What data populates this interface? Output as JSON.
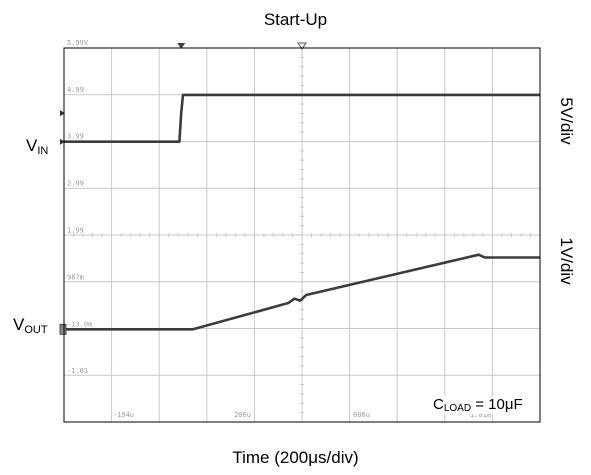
{
  "title": "Start-Up",
  "xlabel": "Time (200μs/div)",
  "side_labels": [
    "5V/div",
    "1V/div"
  ],
  "channel_labels": {
    "vin": {
      "main": "V",
      "sub": "IN"
    },
    "vout": {
      "main": "V",
      "sub": "OUT"
    }
  },
  "annotation": {
    "main": "C",
    "sub": "LOAD",
    "rest": " = 10μF"
  },
  "colors": {
    "trace": "#3c3c3c",
    "grid": "#c9c9c9",
    "axis_text": "#9a9a9a"
  },
  "chart_data": {
    "type": "line",
    "title": "Start-Up",
    "xlabel": "Time (200μs/div)",
    "ylabel": "",
    "grid": true,
    "x_unit": "μs",
    "xlim": [
      -394,
      1206
    ],
    "x_tick_labels": [
      {
        "x": -194,
        "label": "-194u"
      },
      {
        "x": 206,
        "label": "206u"
      },
      {
        "x": 606,
        "label": "606u"
      },
      {
        "x": 1006,
        "label": "1.01m"
      }
    ],
    "y_scale_units": "V",
    "ylim": [
      -1.99,
      5.99
    ],
    "y_tick_labels": [
      {
        "y": 5.99,
        "label": "5.99V"
      },
      {
        "y": 4.99,
        "label": "4.99"
      },
      {
        "y": 3.99,
        "label": "3.99"
      },
      {
        "y": 2.99,
        "label": "2.99"
      },
      {
        "y": 1.99,
        "label": "1.99"
      },
      {
        "y": 0.987,
        "label": "987m"
      },
      {
        "y": -0.013,
        "label": "-13.0m"
      },
      {
        "y": -1.01,
        "label": "-1.01"
      }
    ],
    "series": [
      {
        "name": "V_IN",
        "scale": "5V/div",
        "x": [
          -394,
          -6,
          0,
          6,
          1206
        ],
        "y": [
          3.99,
          3.99,
          4.6,
          4.99,
          4.99
        ]
      },
      {
        "name": "V_OUT",
        "scale": "1V/div",
        "x": [
          -394,
          40,
          360,
          380,
          400,
          420,
          1000,
          1020,
          1206
        ],
        "y": [
          -0.013,
          -0.013,
          0.55,
          0.64,
          0.6,
          0.72,
          1.58,
          1.52,
          1.52
        ]
      }
    ]
  }
}
